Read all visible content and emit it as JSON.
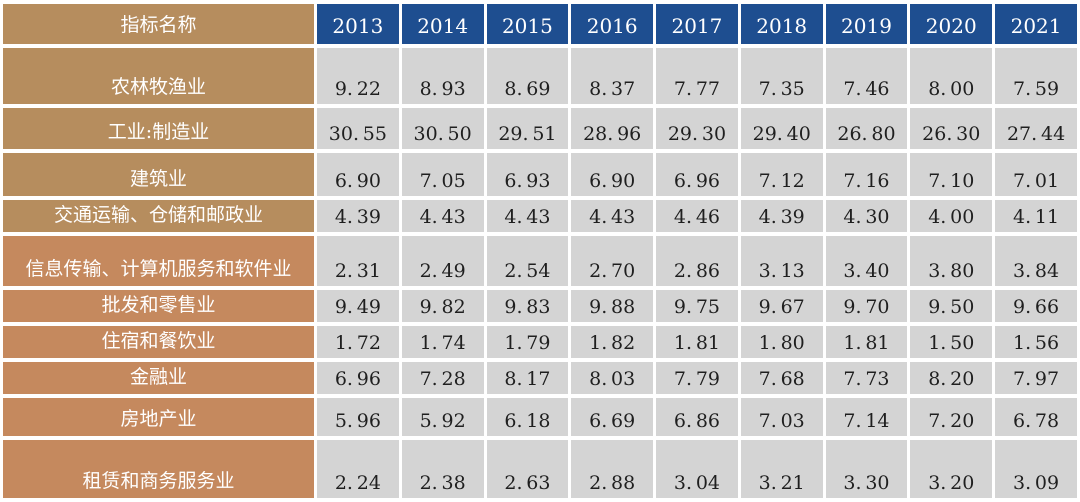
{
  "colors": {
    "year_header_bg": "#1e4e90",
    "label_bg_top": "#b68d5e",
    "label_bg_bottom": "#c5895e",
    "cell_bg": "#d4d4d4",
    "cell_text": "#1f1f1f",
    "header_text": "#ffffff"
  },
  "chart_data": {
    "type": "table",
    "header_label": "指标名称",
    "years": [
      "2013",
      "2014",
      "2015",
      "2016",
      "2017",
      "2018",
      "2019",
      "2020",
      "2021"
    ],
    "rows": [
      {
        "label": "农林牧渔业",
        "values": [
          "9.22",
          "8.93",
          "8.69",
          "8.37",
          "7.77",
          "7.35",
          "7.46",
          "8.00",
          "7.59"
        ]
      },
      {
        "label": "工业:制造业",
        "values": [
          "30.55",
          "30.50",
          "29.51",
          "28.96",
          "29.30",
          "29.40",
          "26.80",
          "26.30",
          "27.44"
        ]
      },
      {
        "label": "建筑业",
        "values": [
          "6.90",
          "7.05",
          "6.93",
          "6.90",
          "6.96",
          "7.12",
          "7.16",
          "7.10",
          "7.01"
        ]
      },
      {
        "label": "交通运输、仓储和邮政业",
        "values": [
          "4.39",
          "4.43",
          "4.43",
          "4.43",
          "4.46",
          "4.39",
          "4.30",
          "4.00",
          "4.11"
        ]
      },
      {
        "label": "信息传输、计算机服务和软件业",
        "values": [
          "2.31",
          "2.49",
          "2.54",
          "2.70",
          "2.86",
          "3.13",
          "3.40",
          "3.80",
          "3.84"
        ]
      },
      {
        "label": "批发和零售业",
        "values": [
          "9.49",
          "9.82",
          "9.83",
          "9.88",
          "9.75",
          "9.67",
          "9.70",
          "9.50",
          "9.66"
        ]
      },
      {
        "label": "住宿和餐饮业",
        "values": [
          "1.72",
          "1.74",
          "1.79",
          "1.82",
          "1.81",
          "1.80",
          "1.81",
          "1.50",
          "1.56"
        ]
      },
      {
        "label": "金融业",
        "values": [
          "6.96",
          "7.28",
          "8.17",
          "8.03",
          "7.79",
          "7.68",
          "7.73",
          "8.20",
          "7.97"
        ]
      },
      {
        "label": "房地产业",
        "values": [
          "5.96",
          "5.92",
          "6.18",
          "6.69",
          "6.86",
          "7.03",
          "7.14",
          "7.20",
          "6.78"
        ]
      },
      {
        "label": "租赁和商务服务业",
        "values": [
          "2.24",
          "2.38",
          "2.63",
          "2.88",
          "3.04",
          "3.21",
          "3.30",
          "3.20",
          "3.09"
        ]
      }
    ]
  }
}
